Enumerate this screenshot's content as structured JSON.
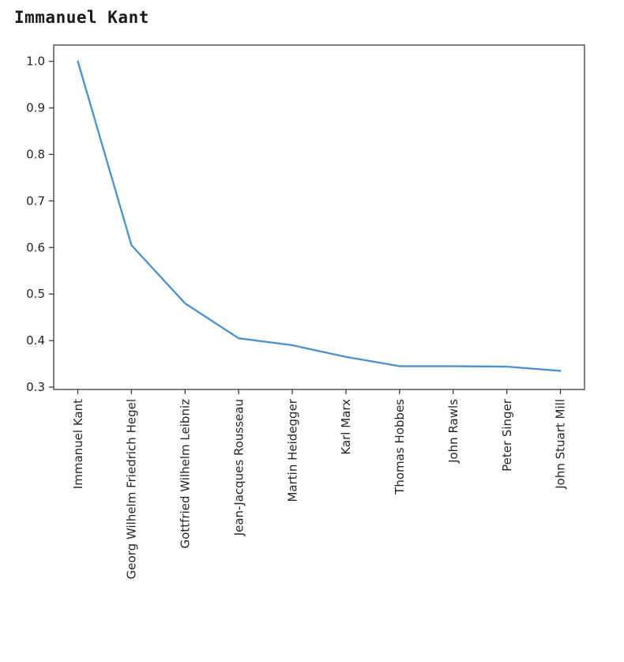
{
  "page": {
    "title": "Immanuel Kant"
  },
  "chart_data": {
    "type": "line",
    "title": "Immanuel Kant",
    "categories": [
      "Immanuel Kant",
      "Georg Wilhelm Friedrich Hegel",
      "Gottfried Wilhelm Leibniz",
      "Jean-Jacques Rousseau",
      "Martin Heidegger",
      "Karl Marx",
      "Thomas Hobbes",
      "John Rawls",
      "Peter Singer",
      "John Stuart Mill"
    ],
    "values": [
      1.0,
      0.605,
      0.48,
      0.405,
      0.39,
      0.365,
      0.345,
      0.345,
      0.344,
      0.335
    ],
    "xlabel": "",
    "ylabel": "",
    "ylim": [
      0.295,
      1.035
    ],
    "yticks": [
      0.3,
      0.4,
      0.5,
      0.6,
      0.7,
      0.8,
      0.9,
      1.0
    ],
    "grid": false,
    "legend_position": "none",
    "line_color": "#4a90cf",
    "axis_color": "#3b3b3b",
    "tick_label_color": "#262626"
  }
}
